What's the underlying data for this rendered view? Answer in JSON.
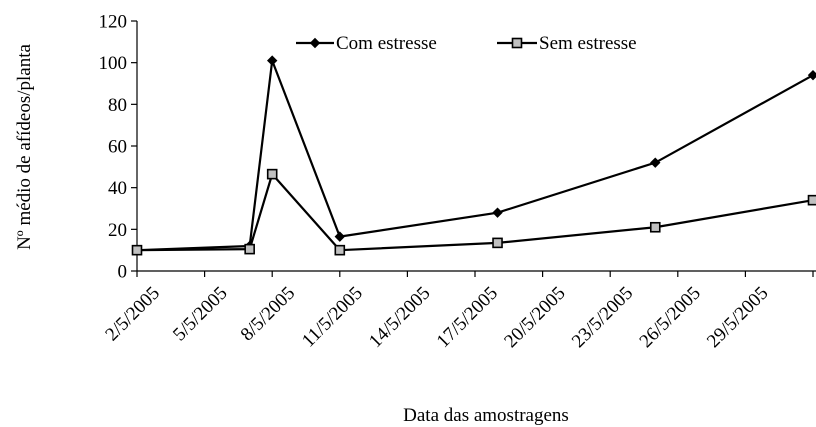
{
  "chart_data": {
    "type": "line",
    "title": "",
    "xlabel": "Data das amostragens",
    "ylabel": "Nº médio de afídeos/planta",
    "x_ticks": [
      "2/5/2005",
      "5/5/2005",
      "8/5/2005",
      "11/5/2005",
      "14/5/2005",
      "17/5/2005",
      "20/5/2005",
      "23/5/2005",
      "26/5/2005",
      "29/5/2005"
    ],
    "y_ticks": [
      "0",
      "20",
      "40",
      "60",
      "80",
      "100",
      "120"
    ],
    "ylim": [
      0,
      120
    ],
    "xlim": [
      "1/5/2005",
      "31/5/2005"
    ],
    "legend_position": "top-center",
    "grid": false,
    "series": [
      {
        "name": "Com estresse",
        "marker": "diamond",
        "color": "#000000",
        "x": [
          "1/5/2005",
          "6/5/2005",
          "7/5/2005",
          "10/5/2005",
          "17/5/2005",
          "24/5/2005",
          "31/5/2005"
        ],
        "values": [
          10,
          12,
          101,
          16.5,
          28,
          52,
          94
        ]
      },
      {
        "name": "Sem estresse",
        "marker": "square",
        "color": "#000000",
        "x": [
          "1/5/2005",
          "6/5/2005",
          "7/5/2005",
          "10/5/2005",
          "17/5/2005",
          "24/5/2005",
          "31/5/2005"
        ],
        "values": [
          10,
          10.5,
          46.5,
          10,
          13.5,
          21,
          34
        ]
      }
    ]
  }
}
